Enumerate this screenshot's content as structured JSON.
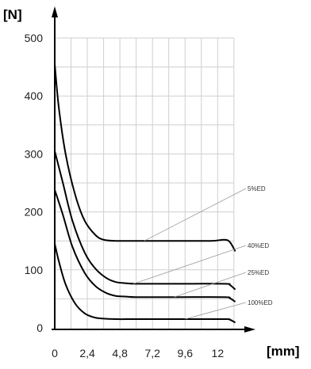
{
  "chart_data": {
    "type": "line",
    "ylabel": "[N]",
    "xlabel": "[mm]",
    "xlim": [
      0,
      13.5
    ],
    "ylim": [
      0,
      500
    ],
    "x_ticks": [
      "0",
      "2,4",
      "4,8",
      "7,2",
      "9,6",
      "12"
    ],
    "x_tick_values": [
      0,
      2.4,
      4.8,
      7.2,
      9.6,
      12
    ],
    "y_ticks": [
      "0",
      "100",
      "200",
      "300",
      "400",
      "500"
    ],
    "y_tick_values": [
      0,
      100,
      200,
      300,
      400,
      500
    ],
    "grid": true,
    "series": [
      {
        "name": "5%ED",
        "x": [
          0,
          0.3,
          0.8,
          1.5,
          2.2,
          3.0,
          3.6,
          4.5,
          6,
          9,
          11.5,
          12.5,
          12.9,
          13.3
        ],
        "y": [
          455,
          380,
          300,
          230,
          185,
          160,
          152,
          150,
          150,
          150,
          150,
          152,
          148,
          132
        ]
      },
      {
        "name": "40%ED",
        "x": [
          0,
          0.6,
          1.3,
          2.2,
          3.0,
          3.8,
          4.5,
          5.2,
          6,
          9,
          12.5,
          12.9,
          13.3
        ],
        "y": [
          305,
          250,
          185,
          130,
          102,
          86,
          79,
          77,
          76,
          76,
          76,
          74,
          66
        ]
      },
      {
        "name": "25%ED",
        "x": [
          0,
          0.6,
          1.3,
          2.2,
          3.0,
          3.8,
          4.5,
          5.2,
          6,
          9,
          12.5,
          12.9,
          13.3
        ],
        "y": [
          238,
          195,
          140,
          95,
          72,
          60,
          55,
          54,
          53,
          53,
          53,
          51,
          45
        ]
      },
      {
        "name": "100%ED",
        "x": [
          0,
          0.3,
          0.8,
          1.5,
          2.2,
          2.9,
          3.5,
          4.5,
          6,
          9,
          12.5,
          12.9,
          13.3
        ],
        "y": [
          145,
          115,
          75,
          42,
          25,
          18,
          16,
          15,
          15,
          15,
          15,
          14,
          9
        ]
      }
    ]
  }
}
